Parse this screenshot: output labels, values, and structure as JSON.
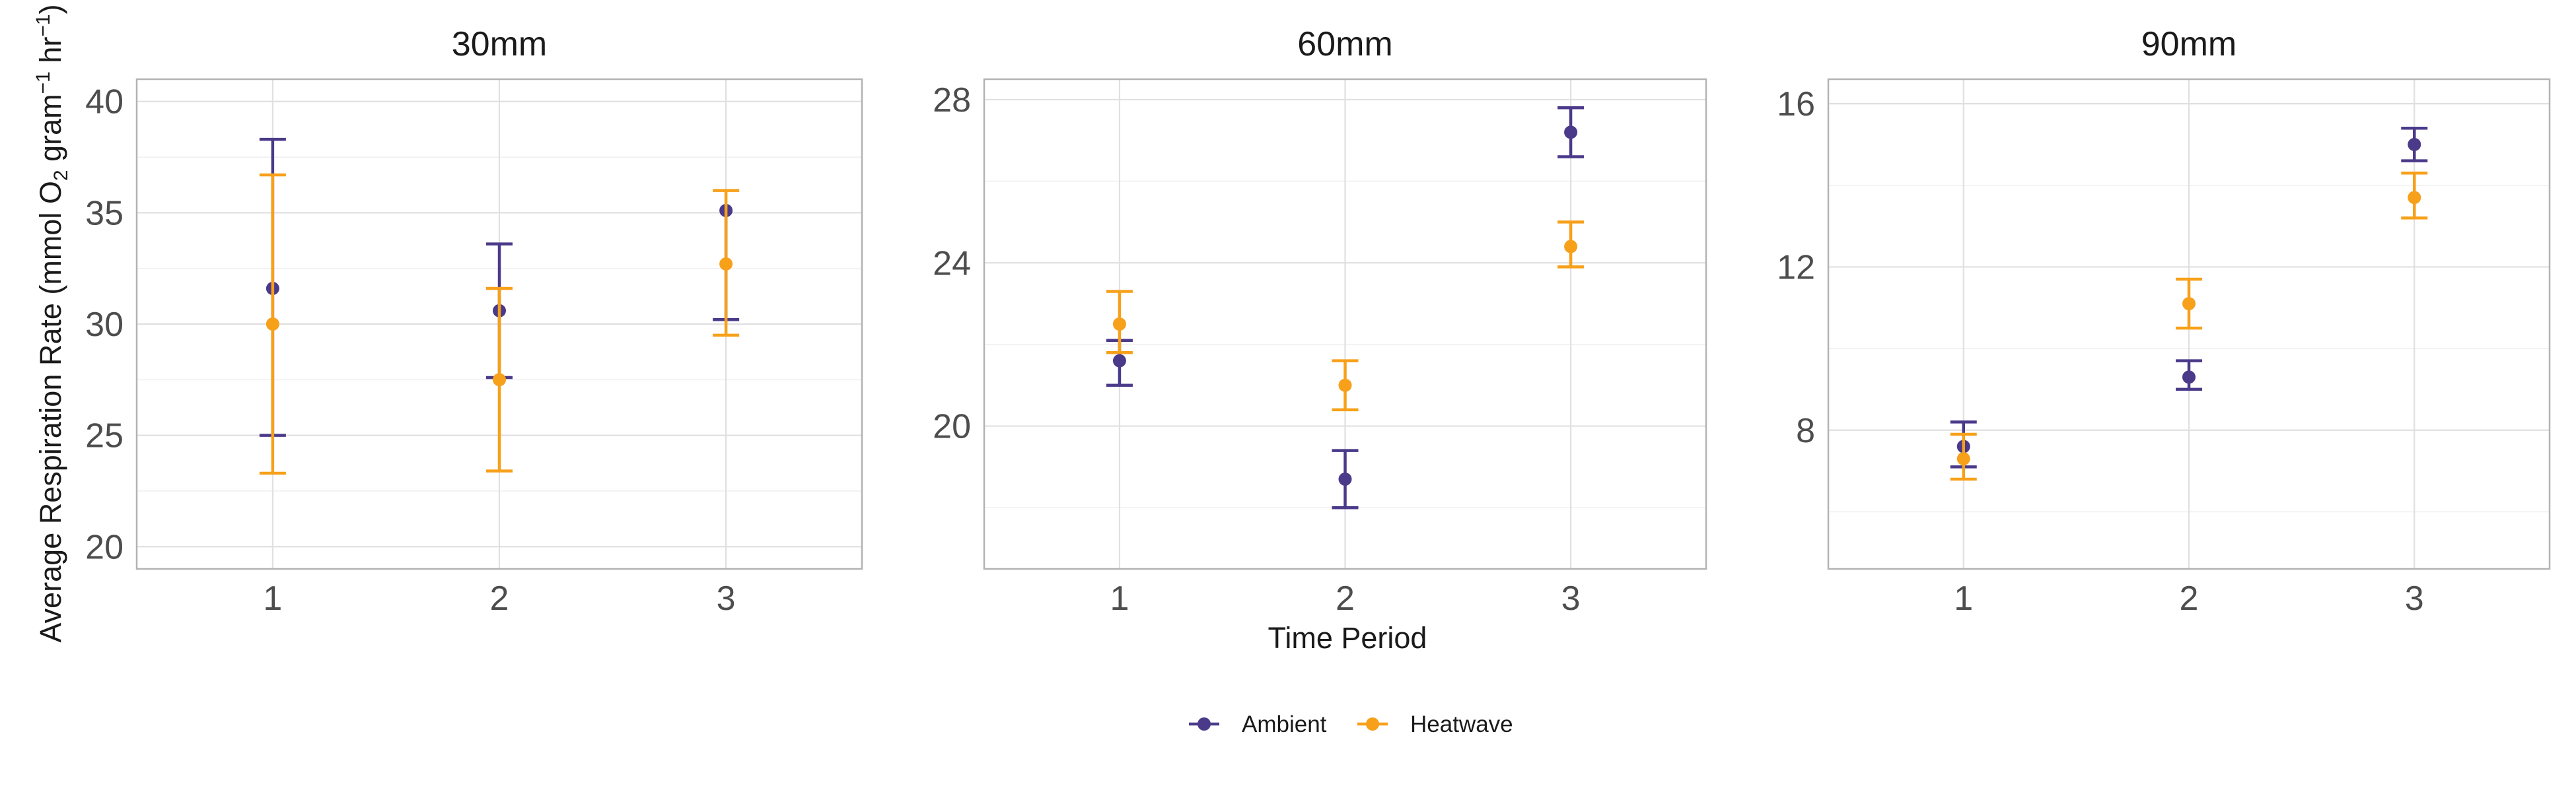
{
  "chart_data": {
    "type": "scatter",
    "subtype": "point-with-errorbars",
    "facets": [
      {
        "title": "30mm",
        "x": [
          1,
          2,
          3
        ],
        "ylim": [
          19,
          41
        ],
        "y_ticks": [
          20,
          25,
          30,
          35,
          40
        ],
        "series": [
          {
            "name": "Ambient",
            "values": [
              31.6,
              30.6,
              35.1
            ],
            "lower": [
              25.0,
              27.6,
              30.2
            ],
            "upper": [
              38.3,
              33.6,
              null
            ]
          },
          {
            "name": "Heatwave",
            "values": [
              30.0,
              27.5,
              32.7
            ],
            "lower": [
              23.3,
              23.4,
              29.5
            ],
            "upper": [
              36.7,
              31.6,
              36.0
            ]
          }
        ]
      },
      {
        "title": "60mm",
        "x": [
          1,
          2,
          3
        ],
        "ylim": [
          16.5,
          28.5
        ],
        "y_ticks": [
          20,
          24,
          28
        ],
        "series": [
          {
            "name": "Ambient",
            "values": [
              21.6,
              18.7,
              27.2
            ],
            "lower": [
              21.0,
              18.0,
              26.6
            ],
            "upper": [
              22.1,
              19.4,
              27.8
            ]
          },
          {
            "name": "Heatwave",
            "values": [
              22.5,
              21.0,
              24.4
            ],
            "lower": [
              21.8,
              20.4,
              23.9
            ],
            "upper": [
              23.3,
              21.6,
              25.0
            ]
          }
        ]
      },
      {
        "title": "90mm",
        "x": [
          1,
          2,
          3
        ],
        "ylim": [
          4.6,
          16.6
        ],
        "y_ticks": [
          8,
          12,
          16
        ],
        "series": [
          {
            "name": "Ambient",
            "values": [
              7.6,
              9.3,
              15.0
            ],
            "lower": [
              7.1,
              9.0,
              14.6
            ],
            "upper": [
              8.2,
              9.7,
              15.4
            ]
          },
          {
            "name": "Heatwave",
            "values": [
              7.3,
              11.1,
              13.7
            ],
            "lower": [
              6.8,
              10.5,
              13.2
            ],
            "upper": [
              7.9,
              11.7,
              14.3
            ]
          }
        ]
      }
    ],
    "x_ticks": [
      "1",
      "2",
      "3"
    ],
    "xlim": [
      0.4,
      3.6
    ],
    "xlabel": "Time Period",
    "ylabel": {
      "part1": "Average Respiration Rate (mmol O",
      "sub": "2",
      "part2": " gram",
      "sup1": "−1",
      "part3": " hr",
      "sup2": "−1",
      "part4": ")"
    },
    "legend": {
      "position": "bottom",
      "items": [
        {
          "name": "Ambient",
          "color": "#4b3a8a"
        },
        {
          "name": "Heatwave",
          "color": "#f7a01a"
        }
      ]
    },
    "grid": true
  }
}
